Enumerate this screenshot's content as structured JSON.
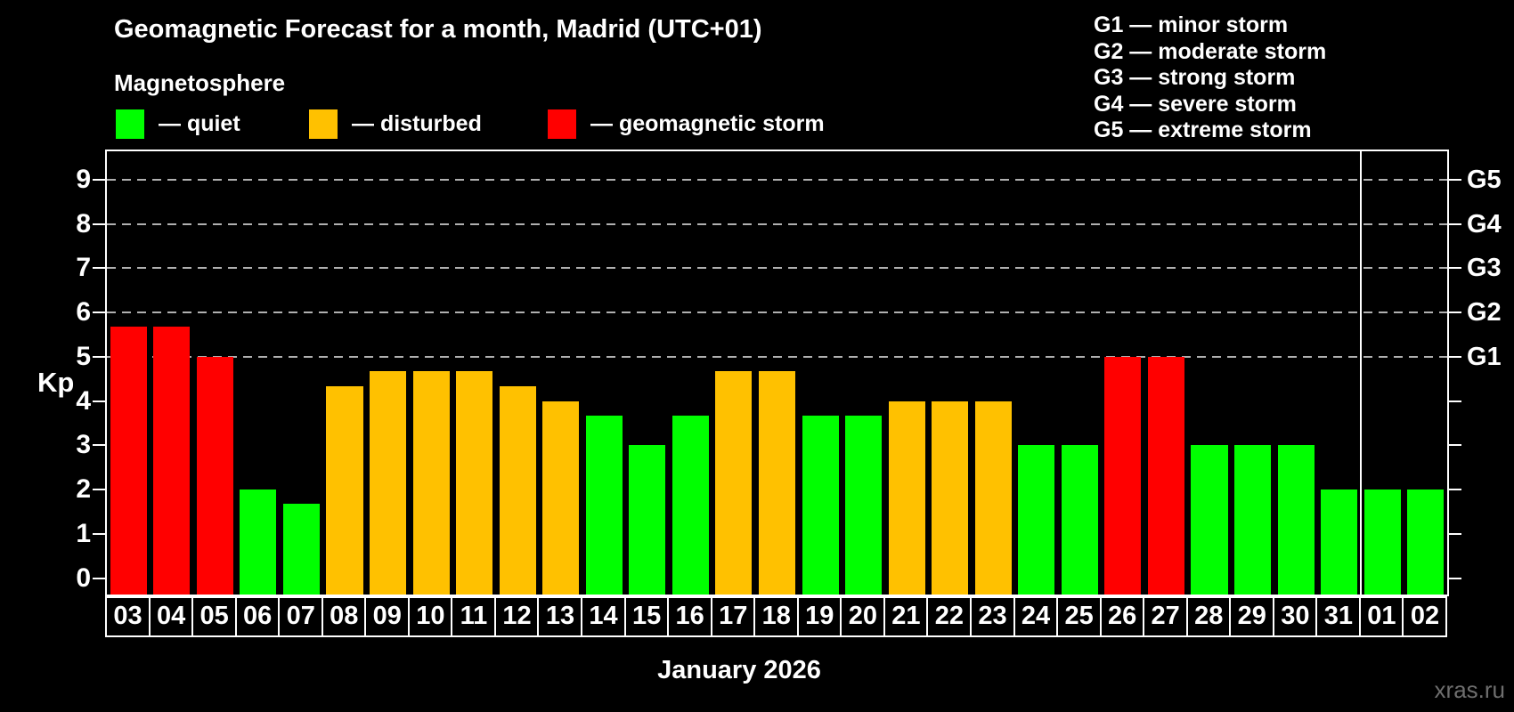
{
  "page": {
    "watermark": "xras.ru",
    "background": "#000000"
  },
  "header": {
    "title": "Geomagnetic Forecast for a month, Madrid (UTC+01)",
    "subtitle": "Magnetosphere"
  },
  "legend": {
    "items": [
      {
        "label": "— quiet",
        "status": "quiet"
      },
      {
        "label": "— disturbed",
        "status": "disturbed"
      },
      {
        "label": "— geomagnetic storm",
        "status": "storm"
      }
    ]
  },
  "g_legend": {
    "items": [
      "G1 — minor storm",
      "G2 — moderate storm",
      "G3 — strong storm",
      "G4 — severe storm",
      "G5 — extreme storm"
    ]
  },
  "chart_data": {
    "type": "bar",
    "title": "Geomagnetic Forecast for a month, Madrid (UTC+01)",
    "subtitle": "Magnetosphere",
    "xlabel": "January 2026",
    "ylabel": "Kp",
    "ylim": [
      0,
      9
    ],
    "y_ticks": [
      0,
      1,
      2,
      3,
      4,
      5,
      6,
      7,
      8,
      9
    ],
    "gridlines_at": [
      5,
      6,
      7,
      8,
      9
    ],
    "grid": "dashed-horizontal-on-storm-levels-only",
    "legend_position": "top-left",
    "right_axis_labels": [
      {
        "label": "G1",
        "kp": 5
      },
      {
        "label": "G2",
        "kp": 6
      },
      {
        "label": "G3",
        "kp": 7
      },
      {
        "label": "G4",
        "kp": 8
      },
      {
        "label": "G5",
        "kp": 9
      }
    ],
    "status_colors": {
      "quiet": "#00ff00",
      "disturbed": "#ffc100",
      "storm": "#ff0000"
    },
    "month_separator_before_index": 29,
    "bars": [
      {
        "date": "03",
        "kp": 5.67,
        "status": "storm"
      },
      {
        "date": "04",
        "kp": 5.67,
        "status": "storm"
      },
      {
        "date": "05",
        "kp": 5.0,
        "status": "storm"
      },
      {
        "date": "06",
        "kp": 2.0,
        "status": "quiet"
      },
      {
        "date": "07",
        "kp": 1.67,
        "status": "quiet"
      },
      {
        "date": "08",
        "kp": 4.33,
        "status": "disturbed"
      },
      {
        "date": "09",
        "kp": 4.67,
        "status": "disturbed"
      },
      {
        "date": "10",
        "kp": 4.67,
        "status": "disturbed"
      },
      {
        "date": "11",
        "kp": 4.67,
        "status": "disturbed"
      },
      {
        "date": "12",
        "kp": 4.33,
        "status": "disturbed"
      },
      {
        "date": "13",
        "kp": 4.0,
        "status": "disturbed"
      },
      {
        "date": "14",
        "kp": 3.67,
        "status": "quiet"
      },
      {
        "date": "15",
        "kp": 3.0,
        "status": "quiet"
      },
      {
        "date": "16",
        "kp": 3.67,
        "status": "quiet"
      },
      {
        "date": "17",
        "kp": 4.67,
        "status": "disturbed"
      },
      {
        "date": "18",
        "kp": 4.67,
        "status": "disturbed"
      },
      {
        "date": "19",
        "kp": 3.67,
        "status": "quiet"
      },
      {
        "date": "20",
        "kp": 3.67,
        "status": "quiet"
      },
      {
        "date": "21",
        "kp": 4.0,
        "status": "disturbed"
      },
      {
        "date": "22",
        "kp": 4.0,
        "status": "disturbed"
      },
      {
        "date": "23",
        "kp": 4.0,
        "status": "disturbed"
      },
      {
        "date": "24",
        "kp": 3.0,
        "status": "quiet"
      },
      {
        "date": "25",
        "kp": 3.0,
        "status": "quiet"
      },
      {
        "date": "26",
        "kp": 5.0,
        "status": "storm"
      },
      {
        "date": "27",
        "kp": 5.0,
        "status": "storm"
      },
      {
        "date": "28",
        "kp": 3.0,
        "status": "quiet"
      },
      {
        "date": "29",
        "kp": 3.0,
        "status": "quiet"
      },
      {
        "date": "30",
        "kp": 3.0,
        "status": "quiet"
      },
      {
        "date": "31",
        "kp": 2.0,
        "status": "quiet"
      },
      {
        "date": "01",
        "kp": 2.0,
        "status": "quiet"
      },
      {
        "date": "02",
        "kp": 2.0,
        "status": "quiet"
      }
    ]
  }
}
